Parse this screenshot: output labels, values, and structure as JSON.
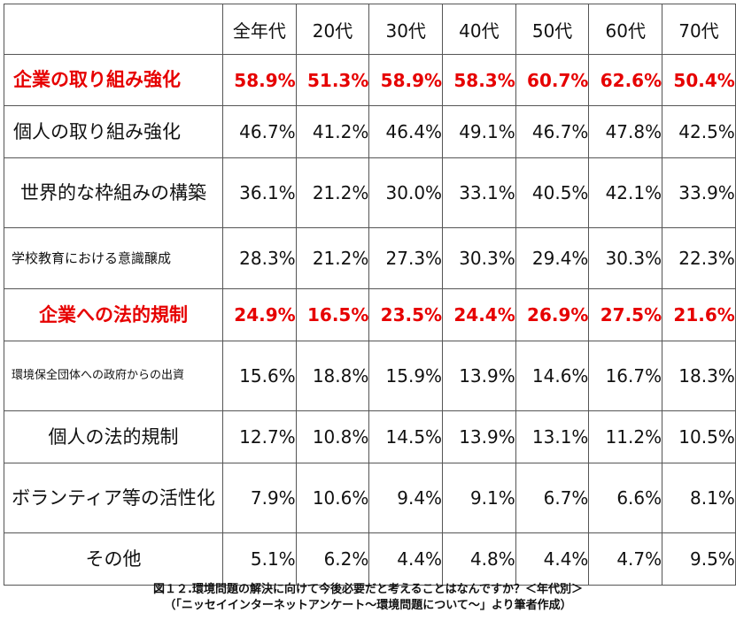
{
  "table": {
    "headers": [
      "",
      "全年代",
      "20代",
      "30代",
      "40代",
      "50代",
      "60代",
      "70代"
    ],
    "rows": [
      {
        "label": "企業の取り組み強化",
        "values": [
          "58.9%",
          "51.3%",
          "58.9%",
          "58.3%",
          "60.7%",
          "62.6%",
          "50.4%"
        ],
        "highlight": true
      },
      {
        "label": "個人の取り組み強化",
        "values": [
          "46.7%",
          "41.2%",
          "46.4%",
          "49.1%",
          "46.7%",
          "47.8%",
          "42.5%"
        ],
        "highlight": false
      },
      {
        "label": "世界的な枠組みの構築",
        "values": [
          "36.1%",
          "21.2%",
          "30.0%",
          "33.1%",
          "40.5%",
          "42.1%",
          "33.9%"
        ],
        "highlight": false
      },
      {
        "label": "学校教育における意識醸成",
        "values": [
          "28.3%",
          "21.2%",
          "27.3%",
          "30.3%",
          "29.4%",
          "30.3%",
          "22.3%"
        ],
        "highlight": false
      },
      {
        "label": "企業への法的規制",
        "values": [
          "24.9%",
          "16.5%",
          "23.5%",
          "24.4%",
          "26.9%",
          "27.5%",
          "21.6%"
        ],
        "highlight": true
      },
      {
        "label": "環境保全団体への政府からの出資",
        "values": [
          "15.6%",
          "18.8%",
          "15.9%",
          "13.9%",
          "14.6%",
          "16.7%",
          "18.3%"
        ],
        "highlight": false
      },
      {
        "label": "個人の法的規制",
        "values": [
          "12.7%",
          "10.8%",
          "14.5%",
          "13.9%",
          "13.1%",
          "11.2%",
          "10.5%"
        ],
        "highlight": false
      },
      {
        "label": "ボランティア等の活性化",
        "values": [
          "7.9%",
          "10.6%",
          "9.4%",
          "9.1%",
          "6.7%",
          "6.6%",
          "8.1%"
        ],
        "highlight": false
      },
      {
        "label": "その他",
        "values": [
          "5.1%",
          "6.2%",
          "4.4%",
          "4.8%",
          "4.4%",
          "4.7%",
          "9.5%"
        ],
        "highlight": false
      }
    ]
  },
  "caption": {
    "line1": "図１２.環境問題の解決に向けて今後必要だと考えることはなんですか？＜年代別＞",
    "line2": "（「ニッセイインターネットアンケート〜環境問題について〜」より筆者作成）"
  },
  "colors": {
    "highlight": "#e60000",
    "border": "#555555",
    "text": "#111111"
  }
}
